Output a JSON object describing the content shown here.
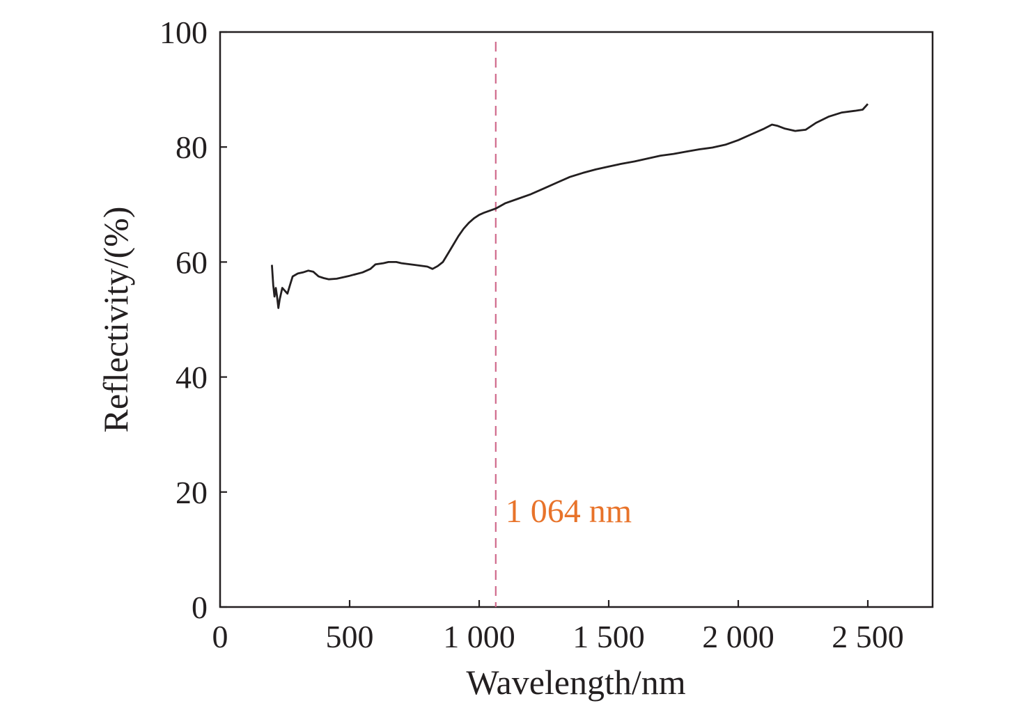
{
  "chart_data": {
    "type": "line",
    "xlabel": "Wavelength/nm",
    "ylabel": "Reflectivity/(%)",
    "xlim": [
      0,
      2750
    ],
    "ylim": [
      0,
      100
    ],
    "x_ticks": [
      0,
      500,
      1000,
      1500,
      2000,
      2500
    ],
    "x_tick_labels": [
      "0",
      "500",
      "1 000",
      "1 500",
      "2 000",
      "2 500"
    ],
    "y_ticks": [
      0,
      20,
      40,
      60,
      80,
      100
    ],
    "y_tick_labels": [
      "0",
      "20",
      "40",
      "60",
      "80",
      "100"
    ],
    "grid": false,
    "series": [
      {
        "color": "#231f20",
        "points": [
          [
            200,
            59.5
          ],
          [
            205,
            56
          ],
          [
            210,
            54
          ],
          [
            215,
            55.5
          ],
          [
            220,
            54
          ],
          [
            225,
            52
          ],
          [
            230,
            53.5
          ],
          [
            240,
            55.5
          ],
          [
            250,
            55
          ],
          [
            260,
            54.5
          ],
          [
            270,
            56
          ],
          [
            280,
            57.5
          ],
          [
            300,
            58
          ],
          [
            320,
            58.2
          ],
          [
            340,
            58.5
          ],
          [
            360,
            58.3
          ],
          [
            380,
            57.5
          ],
          [
            400,
            57.2
          ],
          [
            420,
            57
          ],
          [
            450,
            57.1
          ],
          [
            500,
            57.6
          ],
          [
            550,
            58.2
          ],
          [
            580,
            58.8
          ],
          [
            600,
            59.6
          ],
          [
            630,
            59.8
          ],
          [
            650,
            60
          ],
          [
            680,
            60
          ],
          [
            700,
            59.8
          ],
          [
            750,
            59.5
          ],
          [
            800,
            59.2
          ],
          [
            820,
            58.8
          ],
          [
            840,
            59.3
          ],
          [
            860,
            60
          ],
          [
            880,
            61.5
          ],
          [
            900,
            63
          ],
          [
            920,
            64.5
          ],
          [
            940,
            65.8
          ],
          [
            960,
            66.8
          ],
          [
            980,
            67.6
          ],
          [
            1000,
            68.2
          ],
          [
            1020,
            68.6
          ],
          [
            1064,
            69.3
          ],
          [
            1100,
            70.2
          ],
          [
            1150,
            71
          ],
          [
            1200,
            71.8
          ],
          [
            1250,
            72.8
          ],
          [
            1300,
            73.8
          ],
          [
            1350,
            74.8
          ],
          [
            1400,
            75.5
          ],
          [
            1450,
            76.1
          ],
          [
            1500,
            76.6
          ],
          [
            1550,
            77.1
          ],
          [
            1600,
            77.5
          ],
          [
            1650,
            78
          ],
          [
            1700,
            78.5
          ],
          [
            1750,
            78.8
          ],
          [
            1800,
            79.2
          ],
          [
            1850,
            79.6
          ],
          [
            1900,
            79.9
          ],
          [
            1950,
            80.4
          ],
          [
            2000,
            81.2
          ],
          [
            2050,
            82.2
          ],
          [
            2100,
            83.2
          ],
          [
            2130,
            83.9
          ],
          [
            2150,
            83.7
          ],
          [
            2180,
            83.2
          ],
          [
            2220,
            82.8
          ],
          [
            2260,
            83
          ],
          [
            2300,
            84.2
          ],
          [
            2350,
            85.3
          ],
          [
            2400,
            86
          ],
          [
            2450,
            86.3
          ],
          [
            2480,
            86.5
          ],
          [
            2500,
            87.5
          ]
        ]
      }
    ],
    "reference_line": {
      "x": 1064,
      "color": "#d06a8c",
      "style": "dashed",
      "label": "1 064 nm",
      "label_color": "#e8732a"
    }
  }
}
